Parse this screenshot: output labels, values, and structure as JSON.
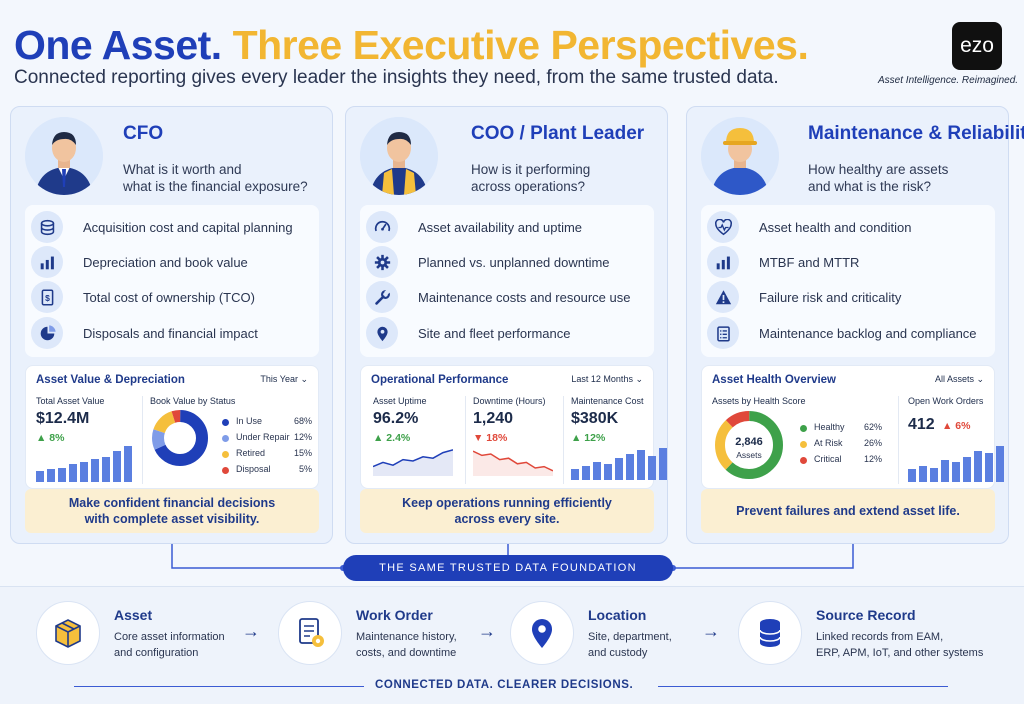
{
  "header": {
    "title_part1": "One Asset.",
    "title_part2": "Three Executive Perspectives.",
    "subtitle": "Connected reporting gives every leader the insights they need, from the same trusted data.",
    "logo_text": "ezo",
    "tagline": "Asset Intelligence. Reimagined."
  },
  "colors": {
    "primary": "#1f3fb8",
    "accent": "#f2b632",
    "green": "#3ea14a",
    "red": "#e0483a",
    "amber": "#f5bf3c"
  },
  "cards": [
    {
      "role": "CFO",
      "question": [
        "What is it worth and",
        "what is the financial exposure?"
      ],
      "items": [
        {
          "icon": "coins-icon",
          "label": "Acquisition cost and capital planning"
        },
        {
          "icon": "bar-chart-icon",
          "label": "Depreciation and book value"
        },
        {
          "icon": "dollar-document-icon",
          "label": "Total cost of ownership (TCO)"
        },
        {
          "icon": "pie-chart-icon",
          "label": "Disposals and financial impact"
        }
      ],
      "panel": {
        "title": "Asset Value & Depreciation",
        "range": "This Year",
        "kpi_label": "Total Asset Value",
        "kpi_value": "$12.4M",
        "kpi_change": "▲ 8%",
        "trend_bars": [
          0.3,
          0.35,
          0.4,
          0.5,
          0.55,
          0.65,
          0.7,
          0.85,
          1.0
        ],
        "donut_title": "Book Value by Status",
        "donut": [
          {
            "label": "In Use",
            "pct": "68%",
            "value": 68,
            "color": "#1f3fb8"
          },
          {
            "label": "Under Repair",
            "pct": "12%",
            "value": 12,
            "color": "#7f9ce8"
          },
          {
            "label": "Retired",
            "pct": "15%",
            "value": 15,
            "color": "#f5bf3c"
          },
          {
            "label": "Disposal",
            "pct": "5%",
            "value": 5,
            "color": "#e0483a"
          }
        ]
      },
      "cta": [
        "Make confident financial decisions",
        "with complete asset visibility."
      ]
    },
    {
      "role": "COO / Plant Leader",
      "question": [
        "How is it performing",
        "across operations?"
      ],
      "items": [
        {
          "icon": "gauge-icon",
          "label": "Asset availability and uptime"
        },
        {
          "icon": "gear-icon",
          "label": "Planned vs. unplanned downtime"
        },
        {
          "icon": "wrench-icon",
          "label": "Maintenance costs and resource use"
        },
        {
          "icon": "location-pin-icon",
          "label": "Site and fleet performance"
        }
      ],
      "panel": {
        "title": "Operational Performance",
        "range": "Last 12 Months",
        "kpis": [
          {
            "label": "Asset Uptime",
            "value": "96.2%",
            "change": "▲ 2.4%",
            "dir": "up",
            "spark": [
              0.3,
              0.45,
              0.35,
              0.55,
              0.5,
              0.65,
              0.6,
              0.8,
              0.9
            ]
          },
          {
            "label": "Downtime (Hours)",
            "value": "1,240",
            "change": "▼ 18%",
            "dir": "down",
            "spark": [
              0.85,
              0.7,
              0.75,
              0.55,
              0.6,
              0.4,
              0.45,
              0.25,
              0.3,
              0.15
            ]
          },
          {
            "label": "Maintenance Cost",
            "value": "$380K",
            "change": "▲ 12%",
            "dir": "up",
            "bars": [
              0.35,
              0.45,
              0.55,
              0.5,
              0.7,
              0.8,
              0.95,
              0.75,
              1.0
            ]
          }
        ]
      },
      "cta": [
        "Keep operations running efficiently",
        "across every site."
      ]
    },
    {
      "role": "Maintenance & Reliability",
      "question": [
        "How healthy are assets",
        "and what is the risk?"
      ],
      "items": [
        {
          "icon": "heartbeat-icon",
          "label": "Asset health and condition"
        },
        {
          "icon": "bar-chart-icon",
          "label": "MTBF and MTTR"
        },
        {
          "icon": "warning-icon",
          "label": "Failure risk and criticality"
        },
        {
          "icon": "clipboard-list-icon",
          "label": "Maintenance backlog and compliance"
        }
      ],
      "panel": {
        "title": "Asset Health Overview",
        "range": "All Assets",
        "donut_title": "Assets by Health Score",
        "donut_center_value": "2,846",
        "donut_center_label": "Assets",
        "donut": [
          {
            "label": "Healthy",
            "pct": "62%",
            "value": 62,
            "color": "#3ea14a"
          },
          {
            "label": "At Risk",
            "pct": "26%",
            "value": 26,
            "color": "#f5bf3c"
          },
          {
            "label": "Critical",
            "pct": "12%",
            "value": 12,
            "color": "#e0483a"
          }
        ],
        "kpi_label": "Open Work Orders",
        "kpi_value": "412",
        "kpi_change": "▲ 6%",
        "bars": [
          0.35,
          0.45,
          0.4,
          0.6,
          0.55,
          0.7,
          0.85,
          0.8,
          1.0
        ]
      },
      "cta": [
        "Prevent failures and extend asset life."
      ]
    }
  ],
  "foundation_label": "THE SAME TRUSTED DATA FOUNDATION",
  "bottom": {
    "nodes": [
      {
        "icon": "box-icon",
        "title": "Asset",
        "desc": [
          "Core asset information",
          "and configuration"
        ]
      },
      {
        "icon": "work-order-icon",
        "title": "Work Order",
        "desc": [
          "Maintenance history,",
          "costs, and downtime"
        ]
      },
      {
        "icon": "location-pin-icon",
        "title": "Location",
        "desc": [
          "Site, department,",
          "and custody"
        ]
      },
      {
        "icon": "database-icon",
        "title": "Source Record",
        "desc": [
          "Linked records from EAM,",
          "ERP, APM, IoT, and other systems"
        ]
      }
    ],
    "arrow": "→",
    "closing": "CONNECTED DATA. CLEARER DECISIONS."
  }
}
